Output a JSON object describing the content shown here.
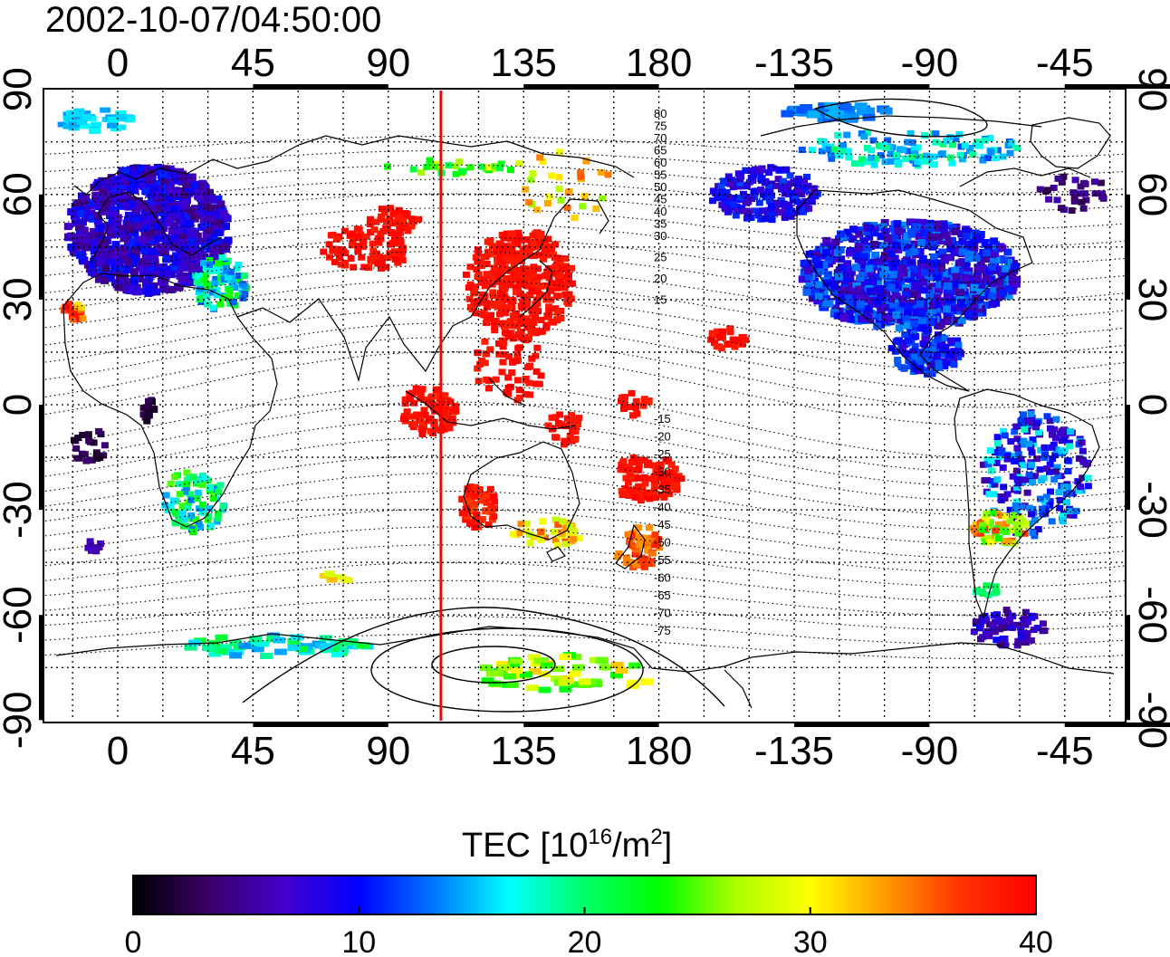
{
  "timestamp": "2002-10-07/04:50:00",
  "map": {
    "top_lon_labels": [
      "0",
      "45",
      "90",
      "135",
      "180",
      "-135",
      "-90",
      "-45"
    ],
    "bottom_lon_labels": [
      "0",
      "45",
      "90",
      "135",
      "180",
      "-135",
      "-90",
      "-45"
    ],
    "left_lat_labels": [
      "90",
      "60",
      "30",
      "0",
      "-30",
      "-60",
      "-90"
    ],
    "right_lat_labels": [
      "90",
      "60",
      "30",
      "0",
      "-30",
      "-60",
      "-90"
    ],
    "magnetic_lat_labels_north": [
      "80",
      "75",
      "70",
      "65",
      "60",
      "55",
      "50",
      "45",
      "40",
      "35",
      "30",
      "25",
      "20",
      "15"
    ],
    "magnetic_lat_labels_south": [
      "-15",
      "-20",
      "-25",
      "-30",
      "-35",
      "-40",
      "-45",
      "-50",
      "-55",
      "-60",
      "-65",
      "-70",
      "-75"
    ],
    "subsolar_longitude_deg": 107.5
  },
  "colorbar": {
    "title_main": "TEC  [10",
    "title_sup1": "16",
    "title_mid": "/m",
    "title_sup2": "2",
    "title_end": "]",
    "min": 0,
    "max": 40,
    "tick_labels": [
      "0",
      "10",
      "20",
      "30",
      "40"
    ],
    "stops": [
      "#000000",
      "#3a0066",
      "#4400cc",
      "#0000ff",
      "#0077ff",
      "#00ffff",
      "#00ff66",
      "#00ff00",
      "#aaff00",
      "#ffff00",
      "#ff9900",
      "#ff3300",
      "#ff0000"
    ]
  },
  "colors": {
    "terminator": "#ff0000",
    "coastline": "#000000"
  }
}
